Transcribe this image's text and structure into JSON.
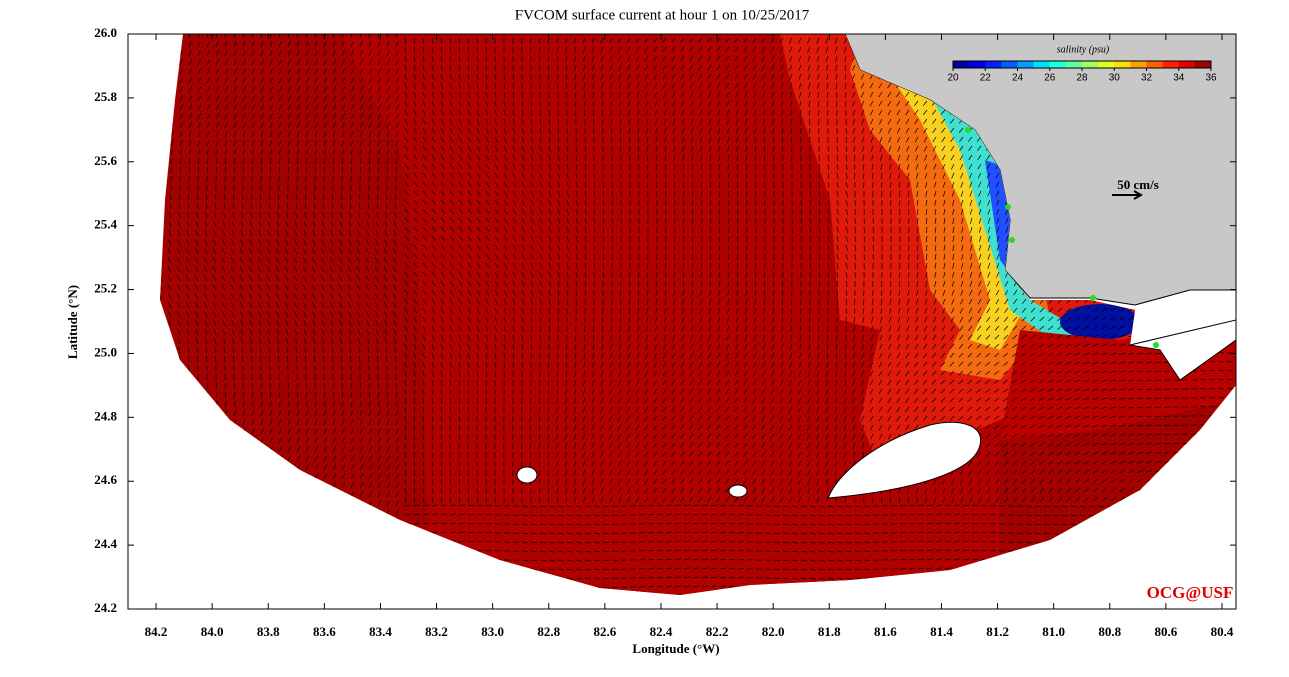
{
  "map": {
    "title": "FVCOM surface current at hour 1 on 10/25/2017",
    "x_label": "Longitude (°W)",
    "y_label": "Latitude (°N)",
    "xlim": [
      84.3,
      80.35
    ],
    "ylim": [
      24.2,
      26.0
    ],
    "xticks": [
      84.2,
      {
        "value": 84,
        "label": "84.0"
      },
      83.8,
      83.6,
      83.4,
      83.2,
      {
        "value": 83,
        "label": "83.0"
      },
      82.8,
      82.6,
      82.4,
      82.2,
      {
        "value": 82,
        "label": "82.0"
      },
      81.8,
      81.6,
      81.4,
      81.2,
      {
        "value": 81,
        "label": "81.0"
      },
      80.8,
      80.6,
      80.4
    ],
    "yticks": [
      24.2,
      24.4,
      24.6,
      24.8,
      {
        "value": 25,
        "label": "25.0"
      },
      25.2,
      25.4,
      25.6,
      25.8,
      {
        "value": 26,
        "label": "26.0"
      }
    ],
    "colorbar": {
      "label": "salinity (psu)",
      "lim": [
        20,
        36
      ],
      "ticks": [
        20,
        22,
        24,
        26,
        28,
        30,
        32,
        34,
        36
      ]
    },
    "scale_label": "50 cm/s",
    "credit": "OCG@USF"
  }
}
